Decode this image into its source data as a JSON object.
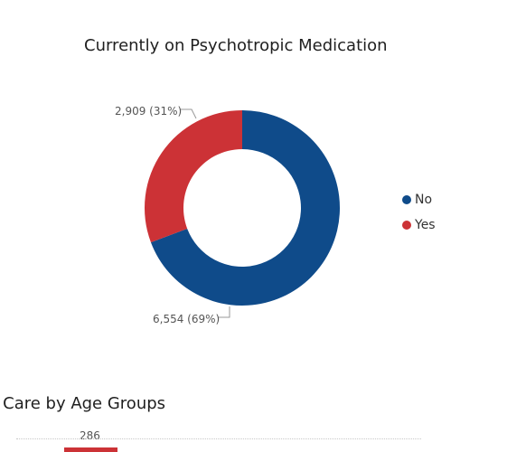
{
  "chart_data": [
    {
      "type": "pie",
      "title": "Currently on Psychotropic Medication",
      "categories": [
        "No",
        "Yes"
      ],
      "values": [
        6554,
        2909
      ],
      "labels": [
        "6,554 (69%)",
        "2,909 (31%)"
      ],
      "colors": [
        "#0f4b8a",
        "#cc3236"
      ],
      "legend": {
        "position": "right",
        "items": [
          "No",
          "Yes"
        ]
      },
      "donut": true
    },
    {
      "type": "bar",
      "title": "r Care by Age Groups",
      "values": [
        286
      ],
      "labels": [
        "286"
      ],
      "colors": [
        "#cc3236"
      ]
    }
  ]
}
